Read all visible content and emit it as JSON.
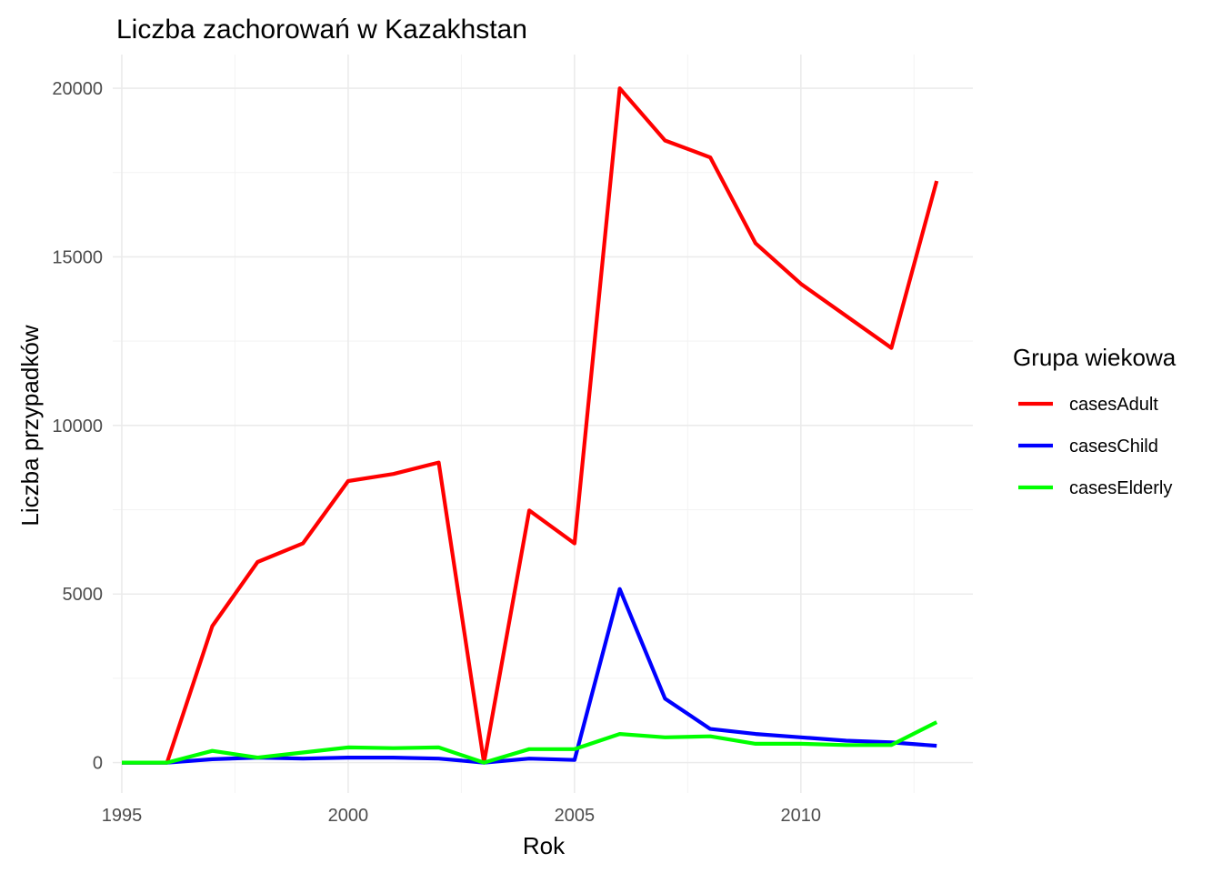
{
  "chart_data": {
    "type": "line",
    "title": "Liczba zachorowań w Kazakhstan",
    "xlabel": "Rok",
    "ylabel": "Liczba przypadków",
    "xlim": [
      1994.8,
      2013.8
    ],
    "ylim": [
      -900,
      21000
    ],
    "x_ticks": [
      1995,
      2000,
      2005,
      2010
    ],
    "x_tick_labels": [
      "1995",
      "2000",
      "2005",
      "2010"
    ],
    "x_minor": [
      1997.5,
      2002.5,
      2007.5,
      2012.5
    ],
    "y_ticks": [
      0,
      5000,
      10000,
      15000,
      20000
    ],
    "y_tick_labels": [
      "0",
      "5000",
      "10000",
      "15000",
      "20000"
    ],
    "y_minor": [
      2500,
      7500,
      12500,
      17500
    ],
    "grid": true,
    "legend": {
      "title": "Grupa wiekowa",
      "position": "right"
    },
    "x": [
      1995,
      1996,
      1997,
      1998,
      1999,
      2000,
      2001,
      2002,
      2003,
      2004,
      2005,
      2006,
      2007,
      2008,
      2009,
      2010,
      2011,
      2012,
      2013
    ],
    "series": [
      {
        "name": "casesAdult",
        "color": "#ff0000",
        "values": [
          0,
          0,
          4050,
          5950,
          6500,
          8350,
          8560,
          8900,
          0,
          7480,
          6500,
          20000,
          18450,
          17950,
          15400,
          14200,
          13250,
          12300,
          17250
        ]
      },
      {
        "name": "casesChild",
        "color": "#0000ff",
        "values": [
          0,
          0,
          100,
          150,
          120,
          150,
          150,
          120,
          0,
          120,
          80,
          5150,
          1900,
          1000,
          850,
          750,
          650,
          600,
          500
        ]
      },
      {
        "name": "casesElderly",
        "color": "#00ff00",
        "values": [
          0,
          0,
          350,
          150,
          300,
          450,
          430,
          450,
          0,
          400,
          400,
          850,
          750,
          780,
          560,
          560,
          520,
          520,
          1200
        ]
      }
    ]
  }
}
